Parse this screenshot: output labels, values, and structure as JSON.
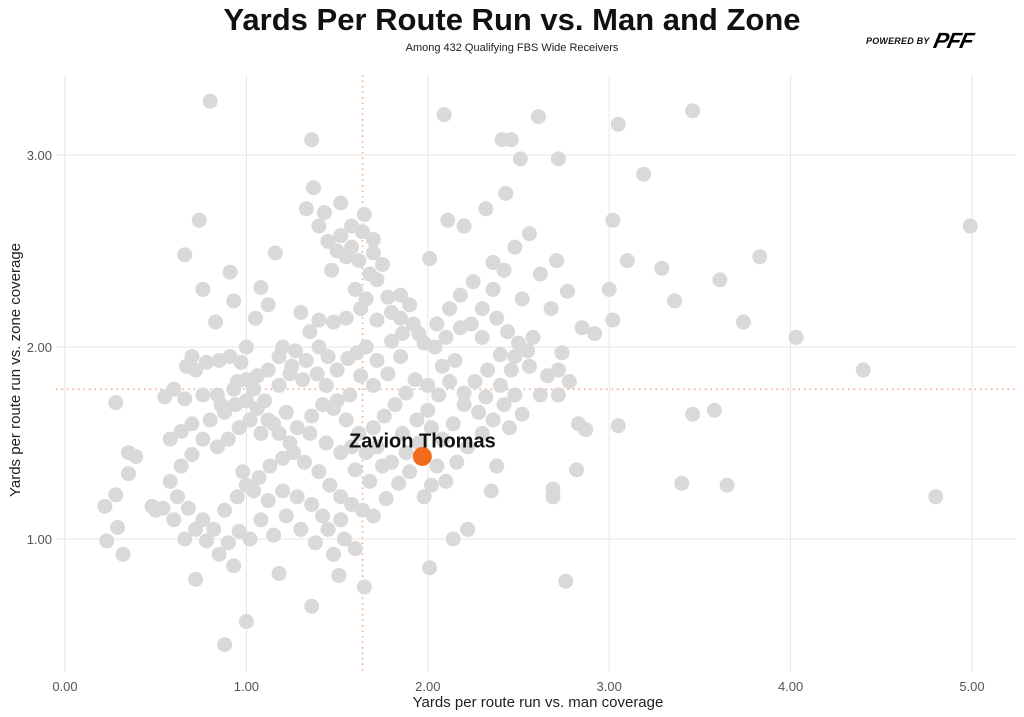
{
  "header": {
    "title": "Yards Per Route Run vs. Man and Zone",
    "subtitle": "Among 432 Qualifying FBS Wide Receivers",
    "logo_prefix": "POWERED BY",
    "logo_text": "PFF"
  },
  "chart_data": {
    "type": "scatter",
    "title": "Yards Per Route Run vs. Man and Zone",
    "subtitle": "Among 432 Qualifying FBS Wide Receivers",
    "xlabel": "Yards per route run vs. man coverage",
    "ylabel": "Yards per route run vs. zone coverage",
    "xlim": [
      -0.05,
      5.2
    ],
    "ylim": [
      0.35,
      3.42
    ],
    "xticks": [
      "0.00",
      "1.00",
      "2.00",
      "3.00",
      "4.00",
      "5.00"
    ],
    "xtick_values": [
      0,
      1,
      2,
      3,
      4,
      5
    ],
    "yticks": [
      "1.00",
      "2.00",
      "3.00"
    ],
    "ytick_values": [
      1,
      2,
      3
    ],
    "grid": true,
    "reference_lines": {
      "x": 1.64,
      "y": 1.78,
      "color": "#f4a67a"
    },
    "point_color": "#d9d9d9",
    "highlight": {
      "name": "Zavion Thomas",
      "x": 1.97,
      "y": 1.43,
      "color": "#f26a1b"
    },
    "points": [
      [
        0.8,
        3.28
      ],
      [
        1.36,
        3.08
      ],
      [
        2.09,
        3.21
      ],
      [
        2.61,
        3.2
      ],
      [
        3.46,
        3.23
      ],
      [
        3.05,
        3.16
      ],
      [
        4.99,
        2.63
      ],
      [
        3.83,
        2.47
      ],
      [
        3.61,
        2.35
      ],
      [
        3.19,
        2.9
      ],
      [
        3.02,
        2.66
      ],
      [
        3.1,
        2.45
      ],
      [
        3.29,
        2.41
      ],
      [
        3.36,
        2.24
      ],
      [
        3.74,
        2.13
      ],
      [
        4.03,
        2.05
      ],
      [
        4.4,
        1.88
      ],
      [
        4.8,
        1.22
      ],
      [
        3.65,
        1.28
      ],
      [
        3.4,
        1.29
      ],
      [
        3.46,
        1.65
      ],
      [
        3.58,
        1.67
      ],
      [
        3.05,
        1.59
      ],
      [
        3.02,
        2.14
      ],
      [
        3.0,
        2.3
      ],
      [
        2.82,
        1.36
      ],
      [
        2.69,
        1.26
      ],
      [
        2.69,
        1.22
      ],
      [
        2.76,
        0.78
      ],
      [
        2.83,
        1.6
      ],
      [
        2.87,
        1.57
      ],
      [
        2.85,
        2.1
      ],
      [
        2.92,
        2.07
      ],
      [
        2.77,
        2.29
      ],
      [
        2.71,
        2.45
      ],
      [
        2.72,
        2.98
      ],
      [
        2.46,
        3.08
      ],
      [
        2.51,
        2.98
      ],
      [
        2.41,
        3.08
      ],
      [
        2.43,
        2.8
      ],
      [
        2.32,
        2.72
      ],
      [
        2.11,
        2.66
      ],
      [
        2.2,
        2.63
      ],
      [
        2.01,
        0.85
      ],
      [
        2.14,
        1.0
      ],
      [
        2.22,
        1.05
      ],
      [
        0.88,
        0.45
      ],
      [
        1.0,
        0.57
      ],
      [
        1.36,
        0.65
      ],
      [
        1.65,
        0.75
      ],
      [
        1.51,
        0.81
      ],
      [
        1.18,
        0.82
      ],
      [
        0.93,
        0.86
      ],
      [
        0.72,
        0.79
      ],
      [
        0.22,
        1.17
      ],
      [
        0.23,
        0.99
      ],
      [
        0.32,
        0.92
      ],
      [
        0.29,
        1.06
      ],
      [
        0.28,
        1.23
      ],
      [
        0.28,
        1.71
      ],
      [
        0.35,
        1.45
      ],
      [
        0.35,
        1.34
      ],
      [
        0.39,
        1.43
      ],
      [
        0.74,
        2.66
      ],
      [
        0.66,
        2.48
      ],
      [
        0.76,
        2.3
      ],
      [
        0.91,
        2.39
      ],
      [
        0.93,
        2.24
      ],
      [
        1.16,
        2.49
      ],
      [
        1.08,
        2.31
      ],
      [
        1.12,
        2.22
      ],
      [
        0.83,
        2.13
      ],
      [
        1.37,
        2.83
      ],
      [
        1.33,
        2.72
      ],
      [
        1.43,
        2.7
      ],
      [
        1.52,
        2.75
      ],
      [
        1.65,
        2.69
      ],
      [
        2.01,
        2.46
      ],
      [
        2.36,
        2.44
      ],
      [
        2.56,
        2.59
      ],
      [
        1.5,
        2.5
      ],
      [
        1.55,
        2.47
      ],
      [
        1.58,
        2.52
      ],
      [
        1.62,
        2.45
      ],
      [
        1.47,
        2.4
      ],
      [
        1.7,
        2.49
      ],
      [
        1.68,
        2.38
      ],
      [
        1.75,
        2.43
      ],
      [
        1.85,
        2.27
      ],
      [
        1.9,
        2.22
      ],
      [
        1.8,
        2.18
      ],
      [
        1.72,
        2.14
      ],
      [
        1.63,
        2.2
      ],
      [
        1.55,
        2.15
      ],
      [
        1.48,
        2.13
      ],
      [
        1.4,
        2.14
      ],
      [
        1.35,
        2.08
      ],
      [
        1.3,
        2.18
      ],
      [
        1.27,
        1.98
      ],
      [
        1.2,
        2.0
      ],
      [
        1.05,
        2.15
      ],
      [
        1.0,
        2.0
      ],
      [
        0.97,
        1.92
      ],
      [
        0.91,
        1.95
      ],
      [
        0.85,
        1.93
      ],
      [
        0.78,
        1.92
      ],
      [
        0.7,
        1.95
      ],
      [
        0.67,
        1.9
      ],
      [
        0.72,
        1.88
      ],
      [
        0.6,
        1.78
      ],
      [
        0.55,
        1.74
      ],
      [
        0.66,
        1.73
      ],
      [
        0.76,
        1.75
      ],
      [
        0.84,
        1.75
      ],
      [
        0.95,
        1.82
      ],
      [
        1.04,
        1.78
      ],
      [
        1.1,
        1.72
      ],
      [
        1.18,
        1.8
      ],
      [
        1.24,
        1.86
      ],
      [
        1.31,
        1.83
      ],
      [
        1.39,
        1.86
      ],
      [
        1.44,
        1.8
      ],
      [
        1.5,
        1.88
      ],
      [
        1.56,
        1.94
      ],
      [
        1.61,
        1.97
      ],
      [
        1.66,
        2.0
      ],
      [
        1.72,
        1.93
      ],
      [
        1.8,
        2.03
      ],
      [
        1.86,
        2.07
      ],
      [
        1.95,
        2.07
      ],
      [
        2.05,
        2.12
      ],
      [
        2.12,
        2.2
      ],
      [
        2.18,
        2.27
      ],
      [
        2.25,
        2.34
      ],
      [
        2.3,
        2.2
      ],
      [
        2.38,
        2.15
      ],
      [
        2.44,
        2.08
      ],
      [
        2.5,
        2.02
      ],
      [
        2.55,
        1.98
      ],
      [
        2.48,
        1.95
      ],
      [
        2.4,
        1.96
      ],
      [
        2.33,
        1.88
      ],
      [
        2.26,
        1.82
      ],
      [
        2.2,
        1.76
      ],
      [
        2.15,
        1.93
      ],
      [
        2.08,
        1.9
      ],
      [
        2.0,
        1.8
      ],
      [
        1.93,
        1.83
      ],
      [
        1.88,
        1.76
      ],
      [
        1.82,
        1.7
      ],
      [
        1.76,
        1.64
      ],
      [
        1.7,
        1.58
      ],
      [
        1.62,
        1.55
      ],
      [
        1.55,
        1.62
      ],
      [
        1.48,
        1.68
      ],
      [
        1.42,
        1.7
      ],
      [
        1.36,
        1.64
      ],
      [
        1.28,
        1.58
      ],
      [
        1.22,
        1.66
      ],
      [
        1.15,
        1.6
      ],
      [
        1.08,
        1.55
      ],
      [
        1.02,
        1.62
      ],
      [
        0.96,
        1.58
      ],
      [
        0.9,
        1.52
      ],
      [
        0.84,
        1.48
      ],
      [
        0.76,
        1.52
      ],
      [
        0.7,
        1.44
      ],
      [
        0.64,
        1.38
      ],
      [
        0.58,
        1.3
      ],
      [
        0.62,
        1.22
      ],
      [
        0.68,
        1.16
      ],
      [
        0.76,
        1.1
      ],
      [
        0.82,
        1.05
      ],
      [
        0.88,
        1.15
      ],
      [
        0.95,
        1.22
      ],
      [
        1.0,
        1.28
      ],
      [
        1.07,
        1.32
      ],
      [
        1.13,
        1.38
      ],
      [
        1.2,
        1.42
      ],
      [
        1.26,
        1.45
      ],
      [
        1.32,
        1.4
      ],
      [
        1.4,
        1.35
      ],
      [
        1.46,
        1.28
      ],
      [
        1.52,
        1.22
      ],
      [
        1.58,
        1.18
      ],
      [
        1.64,
        1.15
      ],
      [
        1.7,
        1.12
      ],
      [
        1.77,
        1.21
      ],
      [
        1.84,
        1.29
      ],
      [
        1.9,
        1.35
      ],
      [
        2.05,
        1.38
      ],
      [
        2.1,
        1.3
      ],
      [
        2.16,
        1.4
      ],
      [
        2.22,
        1.48
      ],
      [
        2.3,
        1.55
      ],
      [
        2.36,
        1.62
      ],
      [
        2.42,
        1.7
      ],
      [
        2.48,
        1.75
      ],
      [
        2.52,
        1.65
      ],
      [
        2.45,
        1.58
      ],
      [
        2.38,
        1.38
      ],
      [
        2.35,
        1.25
      ],
      [
        1.98,
        1.22
      ],
      [
        2.02,
        1.28
      ],
      [
        1.95,
        1.5
      ],
      [
        1.88,
        1.45
      ],
      [
        1.75,
        1.38
      ],
      [
        1.68,
        1.3
      ],
      [
        1.6,
        1.36
      ],
      [
        1.52,
        1.1
      ],
      [
        1.45,
        1.05
      ],
      [
        1.38,
        0.98
      ],
      [
        1.3,
        1.05
      ],
      [
        1.22,
        1.12
      ],
      [
        1.15,
        1.02
      ],
      [
        1.08,
        1.1
      ],
      [
        1.02,
        1.0
      ],
      [
        0.96,
        1.04
      ],
      [
        0.9,
        0.98
      ],
      [
        0.85,
        0.92
      ],
      [
        0.78,
        0.99
      ],
      [
        0.72,
        1.05
      ],
      [
        0.66,
        1.0
      ],
      [
        0.6,
        1.1
      ],
      [
        0.54,
        1.16
      ],
      [
        0.5,
        1.15
      ],
      [
        0.48,
        1.17
      ],
      [
        0.64,
        1.56
      ],
      [
        0.58,
        1.52
      ],
      [
        0.7,
        1.6
      ],
      [
        0.8,
        1.62
      ],
      [
        0.88,
        1.66
      ],
      [
        0.94,
        1.7
      ],
      [
        1.0,
        1.72
      ],
      [
        1.06,
        1.68
      ],
      [
        1.12,
        1.62
      ],
      [
        1.18,
        1.55
      ],
      [
        1.24,
        1.5
      ],
      [
        1.35,
        1.55
      ],
      [
        1.44,
        1.5
      ],
      [
        1.52,
        1.45
      ],
      [
        1.58,
        1.48
      ],
      [
        1.66,
        1.45
      ],
      [
        1.72,
        1.48
      ],
      [
        1.8,
        1.4
      ],
      [
        1.86,
        1.55
      ],
      [
        1.94,
        1.62
      ],
      [
        2.0,
        1.67
      ],
      [
        2.06,
        1.75
      ],
      [
        2.12,
        1.82
      ],
      [
        1.85,
        1.95
      ],
      [
        1.78,
        1.86
      ],
      [
        1.7,
        1.8
      ],
      [
        1.63,
        1.85
      ],
      [
        1.57,
        1.75
      ],
      [
        1.5,
        1.72
      ],
      [
        1.45,
        1.95
      ],
      [
        1.4,
        2.0
      ],
      [
        1.33,
        1.93
      ],
      [
        1.25,
        1.9
      ],
      [
        1.18,
        1.95
      ],
      [
        1.12,
        1.88
      ],
      [
        1.06,
        1.85
      ],
      [
        1.0,
        1.83
      ],
      [
        0.93,
        1.78
      ],
      [
        0.86,
        1.7
      ],
      [
        1.6,
        2.3
      ],
      [
        1.66,
        2.25
      ],
      [
        1.72,
        2.35
      ],
      [
        1.78,
        2.26
      ],
      [
        1.85,
        2.15
      ],
      [
        1.92,
        2.12
      ],
      [
        1.98,
        2.02
      ],
      [
        2.04,
        2.0
      ],
      [
        2.1,
        2.05
      ],
      [
        2.18,
        2.1
      ],
      [
        2.24,
        2.12
      ],
      [
        2.3,
        2.05
      ],
      [
        2.36,
        2.3
      ],
      [
        2.42,
        2.4
      ],
      [
        2.48,
        2.52
      ],
      [
        2.52,
        2.25
      ],
      [
        2.58,
        2.05
      ],
      [
        2.62,
        2.38
      ],
      [
        2.68,
        2.2
      ],
      [
        2.74,
        1.97
      ],
      [
        2.72,
        1.88
      ],
      [
        2.78,
        1.82
      ],
      [
        2.72,
        1.75
      ],
      [
        2.66,
        1.85
      ],
      [
        2.62,
        1.75
      ],
      [
        2.56,
        1.9
      ],
      [
        2.46,
        1.88
      ],
      [
        2.4,
        1.8
      ],
      [
        2.32,
        1.74
      ],
      [
        2.28,
        1.66
      ],
      [
        2.2,
        1.7
      ],
      [
        2.14,
        1.6
      ],
      [
        2.08,
        1.52
      ],
      [
        2.02,
        1.58
      ],
      [
        1.54,
        1.0
      ],
      [
        1.6,
        0.95
      ],
      [
        1.48,
        0.92
      ],
      [
        1.42,
        1.12
      ],
      [
        1.36,
        1.18
      ],
      [
        1.28,
        1.22
      ],
      [
        1.2,
        1.25
      ],
      [
        1.12,
        1.2
      ],
      [
        1.04,
        1.25
      ],
      [
        0.98,
        1.35
      ],
      [
        1.64,
        2.6
      ],
      [
        1.58,
        2.63
      ],
      [
        1.7,
        2.56
      ],
      [
        1.52,
        2.58
      ],
      [
        1.45,
        2.55
      ],
      [
        1.4,
        2.63
      ]
    ]
  },
  "y_axis_label": "Yards per route run vs. zone coverage",
  "x_axis_label": "Yards per route run vs. man coverage"
}
